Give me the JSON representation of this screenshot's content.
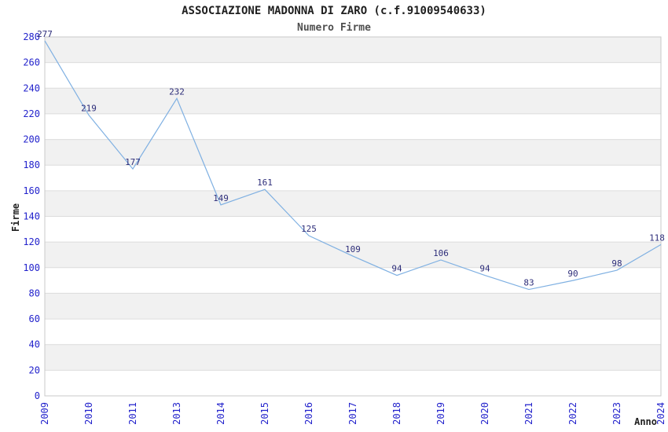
{
  "chart_data": {
    "type": "line",
    "title": "ASSOCIAZIONE MADONNA DI ZARO (c.f.91009540633)",
    "subtitle": "Numero Firme",
    "xlabel": "Anno",
    "ylabel": "Firme",
    "categories": [
      "2009",
      "2010",
      "2011",
      "2013",
      "2014",
      "2015",
      "2016",
      "2017",
      "2018",
      "2019",
      "2020",
      "2021",
      "2022",
      "2023",
      "2024"
    ],
    "series": [
      {
        "name": "Numero Firme",
        "values": [
          277,
          219,
          177,
          232,
          149,
          161,
          125,
          109,
          94,
          106,
          94,
          83,
          90,
          98,
          118
        ]
      }
    ],
    "point_labels": true,
    "ylim": [
      0,
      280
    ],
    "ytick_step": 20,
    "xtick_rotation": 90,
    "grid": "horizontal gridlines with alternating shaded bands",
    "legend": "none"
  },
  "colors": {
    "line": "#7fb0e2",
    "band": "#f1f1f1",
    "gridline": "#dcdcdc",
    "frame": "#c9c9c9",
    "tick_label": "#2323cc",
    "data_label": "#2e2e7a",
    "title": "#1f1f1f",
    "subtitle": "#4f4f4f",
    "axis_title": "#1f1f1f",
    "background": "#ffffff"
  }
}
